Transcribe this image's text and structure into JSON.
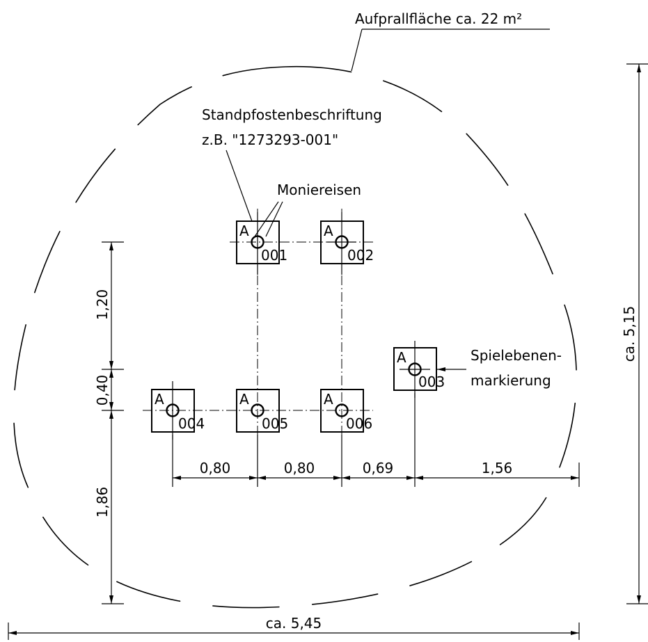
{
  "labels": {
    "impact_area": "Aufprallfläche ca. 22 m²",
    "post_label_1": "Standpfostenbeschriftung",
    "post_label_2": "z.B. \"1273293-001\"",
    "rebar": "Moniereisen",
    "level_mark_1": "Spielebenen-",
    "level_mark_2": "markierung"
  },
  "posts": [
    {
      "id": "001",
      "letter": "A"
    },
    {
      "id": "002",
      "letter": "A"
    },
    {
      "id": "003",
      "letter": "A"
    },
    {
      "id": "004",
      "letter": "A"
    },
    {
      "id": "005",
      "letter": "A"
    },
    {
      "id": "006",
      "letter": "A"
    }
  ],
  "dimensions": {
    "total_width": "ca. 5,45",
    "total_height": "ca. 5,15",
    "vertical": [
      "1,20",
      "0,40",
      "1,86"
    ],
    "horizontal": [
      "0,80",
      "0,80",
      "0,69",
      "1,56"
    ]
  }
}
